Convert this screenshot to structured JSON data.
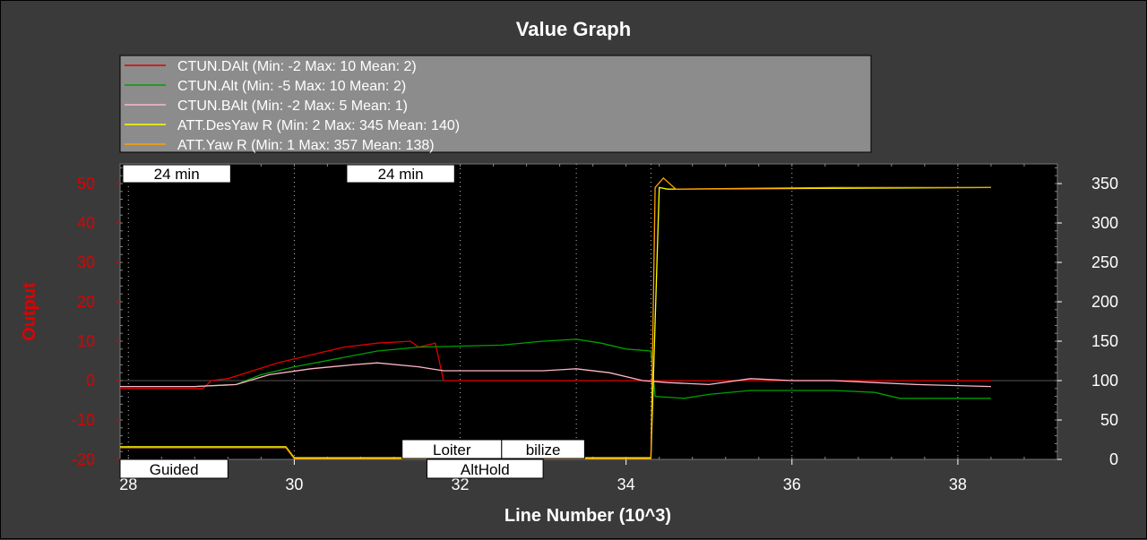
{
  "chart_data": {
    "type": "line",
    "title": "Value Graph",
    "xlabel": "Line Number (10^3)",
    "ylabel": "Output",
    "xlim": [
      27.9,
      39.2
    ],
    "ylim": [
      -20,
      55
    ],
    "y2lim": [
      0,
      375
    ],
    "x_ticks": [
      "28",
      "30",
      "32",
      "34",
      "36",
      "38"
    ],
    "y_ticks": [
      "50",
      "40",
      "30",
      "20",
      "10",
      "0",
      "-10",
      "-20"
    ],
    "y2_ticks": [
      "350",
      "300",
      "250",
      "200",
      "150",
      "100",
      "50",
      "0"
    ],
    "grid": true,
    "legend_position": "top",
    "series": [
      {
        "name": "CTUN.DAlt (Min: -2 Max: 10 Mean: 2)",
        "color": "#e00000",
        "axis": "left",
        "x": [
          27.9,
          28.9,
          29.0,
          29.2,
          29.5,
          29.8,
          30.2,
          30.6,
          31.0,
          31.4,
          31.5,
          31.7,
          31.8,
          34.0,
          38.4
        ],
        "y": [
          -2,
          -2,
          0,
          0.5,
          2.5,
          4.5,
          6.5,
          8.5,
          9.5,
          10,
          8.5,
          9.5,
          0,
          0,
          0
        ]
      },
      {
        "name": "CTUN.Alt (Min: -5 Max: 10 Mean: 2)",
        "color": "#00a000",
        "axis": "left",
        "x": [
          27.9,
          28.8,
          29.3,
          29.6,
          30.0,
          30.5,
          31.0,
          31.5,
          32.5,
          33.0,
          33.4,
          33.7,
          34.0,
          34.3,
          34.35,
          34.7,
          35.0,
          35.5,
          36.5,
          37.0,
          37.3,
          38.4
        ],
        "y": [
          -1.5,
          -1.5,
          -1,
          1.5,
          3.5,
          5.5,
          7.5,
          8.5,
          9,
          10,
          10.5,
          9.5,
          8,
          7.5,
          -4,
          -4.5,
          -3.5,
          -2.5,
          -2.5,
          -3,
          -4.5,
          -4.5
        ]
      },
      {
        "name": "CTUN.BAlt (Min: -2 Max: 5 Mean: 1)",
        "color": "#ffb6c8",
        "axis": "left",
        "x": [
          27.9,
          28.8,
          29.3,
          29.7,
          30.2,
          30.7,
          31.0,
          31.5,
          31.8,
          32.5,
          33.0,
          33.4,
          33.8,
          34.2,
          34.5,
          35.0,
          35.5,
          36.0,
          36.5,
          37.0,
          37.5,
          38.4
        ],
        "y": [
          -1.5,
          -1.5,
          -1,
          1.5,
          3,
          4,
          4.5,
          3.5,
          2.5,
          2.5,
          2.5,
          3,
          2,
          0,
          -0.5,
          -1,
          0.5,
          0,
          0,
          -0.5,
          -1,
          -1.5
        ]
      },
      {
        "name": "ATT.DesYaw R (Min: 2 Max: 345 Mean: 140)",
        "color": "#ffff00",
        "axis": "right",
        "x": [
          27.9,
          29.9,
          30.0,
          30.1,
          31.5,
          34.3,
          34.4,
          34.5,
          38.4
        ],
        "y": [
          16,
          16,
          2,
          2,
          2,
          2,
          345,
          343,
          345
        ]
      },
      {
        "name": "ATT.Yaw R (Min: 1 Max: 357 Mean: 138)",
        "color": "#ffa000",
        "axis": "right",
        "x": [
          27.9,
          29.9,
          30.0,
          30.1,
          31.5,
          34.3,
          34.35,
          34.45,
          34.6,
          35.5,
          36.5,
          37.5,
          38.4
        ],
        "y": [
          15,
          15,
          1,
          1,
          1,
          1,
          345,
          357,
          343,
          344,
          345,
          345,
          345
        ]
      }
    ],
    "annotations_top": [
      {
        "text": "24 min",
        "x_start": 27.9,
        "x_end": 29.2
      },
      {
        "text": "24 min",
        "x_start": 30.6,
        "x_end": 31.9
      }
    ],
    "annotations_bottom": [
      {
        "text": "Guided",
        "x_start": 27.9,
        "x_end": 29.2,
        "row": 1
      },
      {
        "text": "Loiter",
        "x_start": 31.3,
        "x_end": 32.5,
        "row": 0
      },
      {
        "text": "bilize",
        "x_start": 32.5,
        "x_end": 33.5,
        "row": 0
      },
      {
        "text": "AltHold",
        "x_start": 31.6,
        "x_end": 33.0,
        "row": 1
      }
    ],
    "mode_lines_x": [
      28.0,
      30.0,
      32.0,
      33.4,
      34.3,
      36.0,
      38.0
    ]
  }
}
